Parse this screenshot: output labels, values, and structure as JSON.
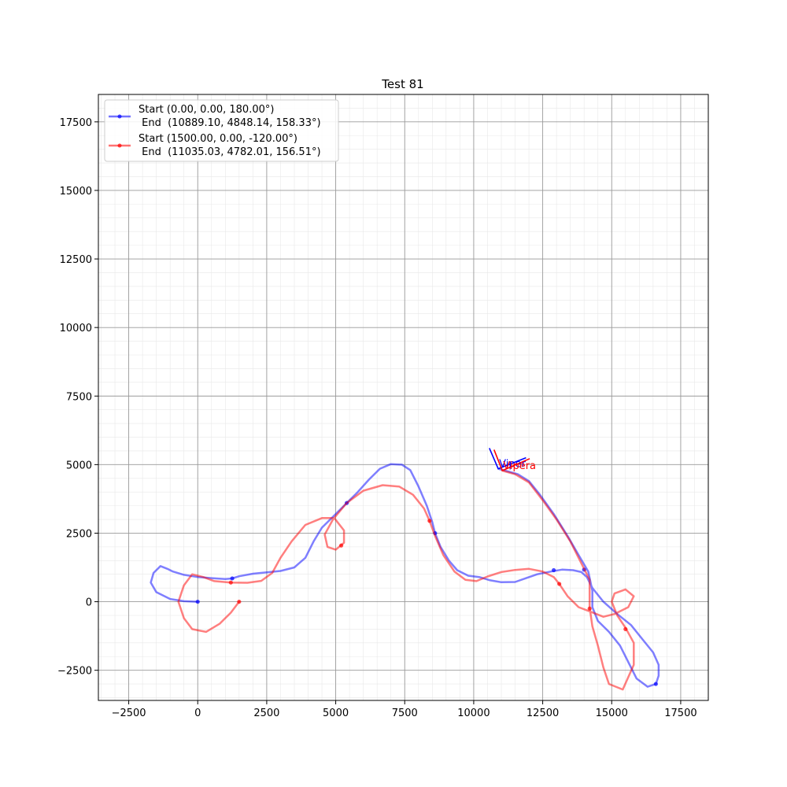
{
  "chart_data": {
    "type": "line",
    "title": "Test 81",
    "xlabel": "",
    "ylabel": "",
    "xlim": [
      -3600,
      18500
    ],
    "ylim": [
      -3600,
      18500
    ],
    "x_ticks": [
      -2500,
      0,
      2500,
      5000,
      7500,
      10000,
      12500,
      15000,
      17500
    ],
    "y_ticks": [
      -2500,
      0,
      2500,
      5000,
      7500,
      10000,
      12500,
      15000,
      17500
    ],
    "x_tick_labels": [
      "−2500",
      "0",
      "2500",
      "5000",
      "7500",
      "10000",
      "12500",
      "15000",
      "17500"
    ],
    "y_tick_labels": [
      "−2500",
      "0",
      "2500",
      "5000",
      "7500",
      "10000",
      "12500",
      "15000",
      "17500"
    ],
    "grid": true,
    "minor_grid": true,
    "legend_position": "top-left",
    "series": [
      {
        "name": "Start (0.00, 0.00, 180.00°)\n End  (10889.10, 4848.14, 158.33°)",
        "legend_line1": "Start (0.00, 0.00, 180.00°)",
        "legend_line2": " End  (10889.10, 4848.14, 158.33°)",
        "color": "#0000ff",
        "points": [
          [
            0,
            0
          ],
          [
            -500,
            20
          ],
          [
            -1000,
            100
          ],
          [
            -1500,
            350
          ],
          [
            -1700,
            700
          ],
          [
            -1600,
            1050
          ],
          [
            -1350,
            1300
          ],
          [
            -1100,
            1200
          ],
          [
            -900,
            1100
          ],
          [
            -500,
            980
          ],
          [
            0,
            900
          ],
          [
            500,
            860
          ],
          [
            1000,
            830
          ],
          [
            1250,
            850
          ],
          [
            1500,
            930
          ],
          [
            2000,
            1020
          ],
          [
            2500,
            1070
          ],
          [
            3000,
            1120
          ],
          [
            3500,
            1250
          ],
          [
            3900,
            1600
          ],
          [
            4200,
            2200
          ],
          [
            4500,
            2700
          ],
          [
            4900,
            3100
          ],
          [
            5200,
            3400
          ],
          [
            5400,
            3600
          ],
          [
            5800,
            4000
          ],
          [
            6200,
            4450
          ],
          [
            6600,
            4850
          ],
          [
            7000,
            5020
          ],
          [
            7400,
            5000
          ],
          [
            7700,
            4800
          ],
          [
            8000,
            4200
          ],
          [
            8300,
            3500
          ],
          [
            8500,
            2900
          ],
          [
            8600,
            2500
          ],
          [
            8800,
            2000
          ],
          [
            9100,
            1500
          ],
          [
            9400,
            1150
          ],
          [
            9800,
            950
          ],
          [
            10200,
            900
          ],
          [
            10600,
            780
          ],
          [
            11000,
            710
          ],
          [
            11500,
            720
          ],
          [
            11900,
            860
          ],
          [
            12300,
            1000
          ],
          [
            12800,
            1100
          ],
          [
            13200,
            1170
          ],
          [
            13600,
            1150
          ],
          [
            13900,
            1080
          ],
          [
            14100,
            900
          ],
          [
            14300,
            500
          ],
          [
            14700,
            0
          ],
          [
            15200,
            -450
          ],
          [
            15700,
            -850
          ],
          [
            16100,
            -1350
          ],
          [
            16500,
            -1850
          ],
          [
            16700,
            -2300
          ],
          [
            16700,
            -2700
          ],
          [
            16600,
            -3000
          ],
          [
            16300,
            -3100
          ],
          [
            15900,
            -2800
          ],
          [
            15600,
            -2200
          ],
          [
            15300,
            -1600
          ],
          [
            14900,
            -1100
          ],
          [
            14500,
            -700
          ],
          [
            14300,
            -200
          ],
          [
            14300,
            400
          ],
          [
            14150,
            1100
          ],
          [
            13800,
            1700
          ],
          [
            13400,
            2400
          ],
          [
            12900,
            3200
          ],
          [
            12400,
            3900
          ],
          [
            12000,
            4400
          ],
          [
            11600,
            4650
          ],
          [
            11250,
            4750
          ],
          [
            10889,
            4848
          ]
        ],
        "markers": [
          [
            0,
            0
          ],
          [
            1250,
            850
          ],
          [
            5400,
            3600
          ],
          [
            8600,
            2500
          ],
          [
            12900,
            1150
          ],
          [
            14000,
            1170
          ],
          [
            16600,
            -3000
          ]
        ]
      },
      {
        "name": "Start (1500.00, 0.00, -120.00°)\n End  (11035.03, 4782.01, 156.51°)",
        "legend_line1": "Start (1500.00, 0.00, -120.00°)",
        "legend_line2": " End  (11035.03, 4782.01, 156.51°)",
        "color": "#ff0000",
        "points": [
          [
            1500,
            0
          ],
          [
            1200,
            -400
          ],
          [
            800,
            -800
          ],
          [
            300,
            -1100
          ],
          [
            -200,
            -1000
          ],
          [
            -500,
            -600
          ],
          [
            -700,
            0
          ],
          [
            -500,
            600
          ],
          [
            -200,
            1000
          ],
          [
            200,
            900
          ],
          [
            600,
            750
          ],
          [
            1200,
            700
          ],
          [
            1800,
            690
          ],
          [
            2300,
            760
          ],
          [
            2700,
            1050
          ],
          [
            3000,
            1600
          ],
          [
            3400,
            2200
          ],
          [
            3900,
            2800
          ],
          [
            4500,
            3050
          ],
          [
            4950,
            3050
          ],
          [
            5300,
            2600
          ],
          [
            5300,
            2150
          ],
          [
            5000,
            1900
          ],
          [
            4700,
            2000
          ],
          [
            4600,
            2450
          ],
          [
            4900,
            3000
          ],
          [
            5400,
            3600
          ],
          [
            6000,
            4050
          ],
          [
            6700,
            4250
          ],
          [
            7300,
            4200
          ],
          [
            7800,
            3900
          ],
          [
            8200,
            3400
          ],
          [
            8400,
            2950
          ],
          [
            8600,
            2400
          ],
          [
            8900,
            1700
          ],
          [
            9300,
            1100
          ],
          [
            9700,
            800
          ],
          [
            10100,
            750
          ],
          [
            10500,
            920
          ],
          [
            11000,
            1080
          ],
          [
            11500,
            1160
          ],
          [
            12000,
            1200
          ],
          [
            12500,
            1100
          ],
          [
            12900,
            900
          ],
          [
            13100,
            650
          ],
          [
            13400,
            200
          ],
          [
            13800,
            -200
          ],
          [
            14200,
            -350
          ],
          [
            14700,
            -550
          ],
          [
            15100,
            -450
          ],
          [
            15600,
            -200
          ],
          [
            15800,
            200
          ],
          [
            15500,
            450
          ],
          [
            15100,
            300
          ],
          [
            15000,
            0
          ],
          [
            15200,
            -500
          ],
          [
            15500,
            -950
          ],
          [
            15800,
            -1500
          ],
          [
            15800,
            -2300
          ],
          [
            15400,
            -3200
          ],
          [
            14900,
            -3000
          ],
          [
            14700,
            -2400
          ],
          [
            14500,
            -1600
          ],
          [
            14300,
            -900
          ],
          [
            14200,
            -200
          ],
          [
            14200,
            800
          ],
          [
            13900,
            1400
          ],
          [
            13500,
            2200
          ],
          [
            13000,
            3000
          ],
          [
            12500,
            3700
          ],
          [
            12000,
            4350
          ],
          [
            11500,
            4650
          ],
          [
            11035,
            4782
          ]
        ],
        "markers": [
          [
            1500,
            0
          ],
          [
            1200,
            700
          ],
          [
            5200,
            2050
          ],
          [
            8400,
            2950
          ],
          [
            13100,
            650
          ],
          [
            14200,
            -250
          ],
          [
            15500,
            -1000
          ]
        ]
      }
    ],
    "end_annotations": [
      {
        "label": "Viper",
        "color": "#0000ff",
        "x": 10889.1,
        "y": 4848.14,
        "heading_deg": 158.33
      },
      {
        "label": "Vipera",
        "color": "#ff0000",
        "x": 11035.03,
        "y": 4782.01,
        "heading_deg": 156.51
      }
    ]
  }
}
